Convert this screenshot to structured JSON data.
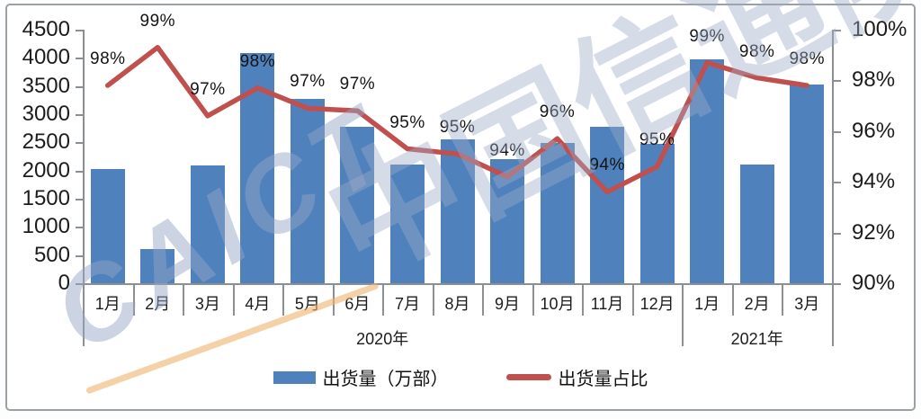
{
  "chart_data": {
    "type": "bar+line combo",
    "categories": [
      "1月",
      "2月",
      "3月",
      "4月",
      "5月",
      "6月",
      "7月",
      "8月",
      "9月",
      "10月",
      "11月",
      "12月",
      "1月",
      "2月",
      "3月"
    ],
    "year_groups": [
      {
        "label": "2020年",
        "months": 12
      },
      {
        "label": "2021年",
        "months": 3
      }
    ],
    "series": [
      {
        "name": "出货量（万部）",
        "type": "bar",
        "axis": "left",
        "color": "#4f81bd",
        "values": [
          2030,
          600,
          2090,
          4090,
          3270,
          2770,
          2110,
          2550,
          2200,
          2490,
          2770,
          2480,
          3970,
          2110,
          3530
        ],
        "note": "bar heights estimated from axis gridlines; no data labels printed"
      },
      {
        "name": "出货量占比",
        "type": "line",
        "axis": "right",
        "color": "#c0504d",
        "labels": [
          "98%",
          "99%",
          "97%",
          "98%",
          "97%",
          "97%",
          "95%",
          "95%",
          "94%",
          "96%",
          "94%",
          "95%",
          "99%",
          "98%",
          "98%"
        ],
        "values_pct": [
          97.8,
          99.3,
          96.6,
          97.7,
          96.9,
          96.8,
          95.3,
          95.1,
          94.2,
          95.7,
          93.6,
          94.6,
          98.7,
          98.1,
          97.8
        ]
      }
    ],
    "left_axis": {
      "min": 0,
      "max": 4500,
      "step": 500
    },
    "right_axis": {
      "min": 90,
      "max": 100,
      "step": 2,
      "suffix": "%"
    },
    "grid": false,
    "legend_position": "bottom-center",
    "title": ""
  },
  "legend": {
    "bar_label": "出货量（万部）",
    "line_label": "出货量占比"
  },
  "watermark": {
    "latin": "CAICT",
    "cjk": "中国信通院"
  },
  "colors": {
    "bar": "#4f81bd",
    "line": "#c0504d",
    "axis": "#8c9093",
    "text": "#1c1c1c",
    "watermark": "#9fb0ca",
    "swoosh": "#eeb26c"
  }
}
